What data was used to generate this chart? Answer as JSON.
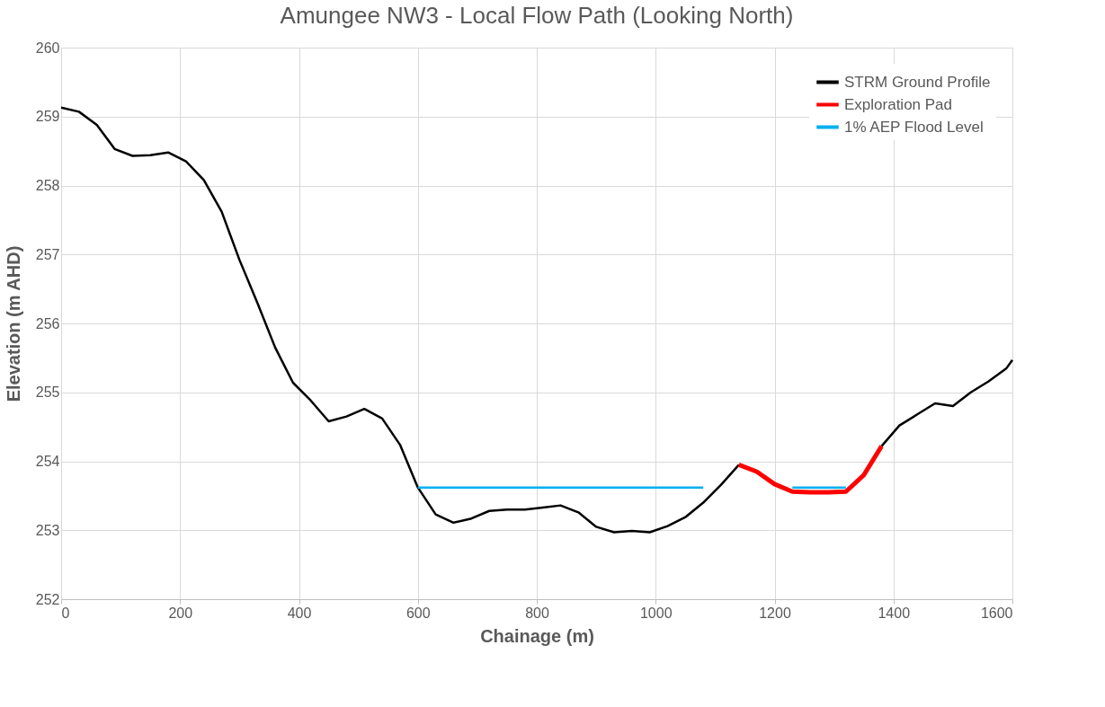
{
  "chart_data": {
    "type": "line",
    "title": "Amungee NW3 - Local Flow Path (Looking North)",
    "xlabel": "Chainage (m)",
    "ylabel": "Elevation (m AHD)",
    "xlim": [
      0,
      1600
    ],
    "xticks": [
      0,
      200,
      400,
      600,
      800,
      1000,
      1200,
      1400,
      1600
    ],
    "ylim": [
      252,
      260
    ],
    "yticks": [
      252,
      253,
      254,
      255,
      256,
      257,
      258,
      259,
      260
    ],
    "grid": true,
    "legend": "top right",
    "line_style": "solid",
    "marker": "none",
    "series": [
      {
        "name": "STRM Ground Profile",
        "color": "#000000",
        "x": [
          0,
          30,
          60,
          90,
          120,
          150,
          180,
          210,
          240,
          270,
          300,
          330,
          360,
          390,
          420,
          450,
          480,
          510,
          540,
          570,
          600,
          630,
          660,
          690,
          720,
          750,
          780,
          810,
          840,
          870,
          900,
          930,
          960,
          990,
          1020,
          1050,
          1080,
          1110,
          1140,
          1170,
          1200,
          1230,
          1260,
          1290,
          1320,
          1350,
          1380,
          1410,
          1440,
          1470,
          1500,
          1530,
          1560,
          1590,
          1600
        ],
        "values": [
          259.13,
          259.07,
          258.88,
          258.53,
          258.43,
          258.44,
          258.48,
          258.35,
          258.08,
          257.62,
          256.92,
          256.3,
          255.65,
          255.14,
          254.88,
          254.58,
          254.65,
          254.76,
          254.62,
          254.24,
          253.62,
          253.23,
          253.11,
          253.17,
          253.28,
          253.3,
          253.3,
          253.33,
          253.36,
          253.26,
          253.05,
          252.97,
          252.99,
          252.97,
          253.06,
          253.19,
          253.4,
          253.66,
          253.95,
          null,
          null,
          null,
          null,
          null,
          null,
          null,
          254.22,
          254.52,
          254.68,
          254.84,
          254.8,
          255.0,
          255.16,
          255.35,
          255.47
        ]
      },
      {
        "name": "Exploration Pad",
        "color": "#ff0000",
        "x": [
          1140,
          1170,
          1200,
          1230,
          1260,
          1290,
          1320,
          1350,
          1380
        ],
        "values": [
          253.95,
          253.85,
          253.67,
          253.56,
          253.55,
          253.55,
          253.56,
          253.8,
          254.22
        ]
      },
      {
        "name": "1% AEP Flood Level",
        "color": "#00b0f0",
        "x": [
          600,
          1080,
          1150,
          1230,
          1320
        ],
        "values": [
          253.62,
          253.62,
          null,
          253.62,
          253.62
        ]
      }
    ]
  }
}
